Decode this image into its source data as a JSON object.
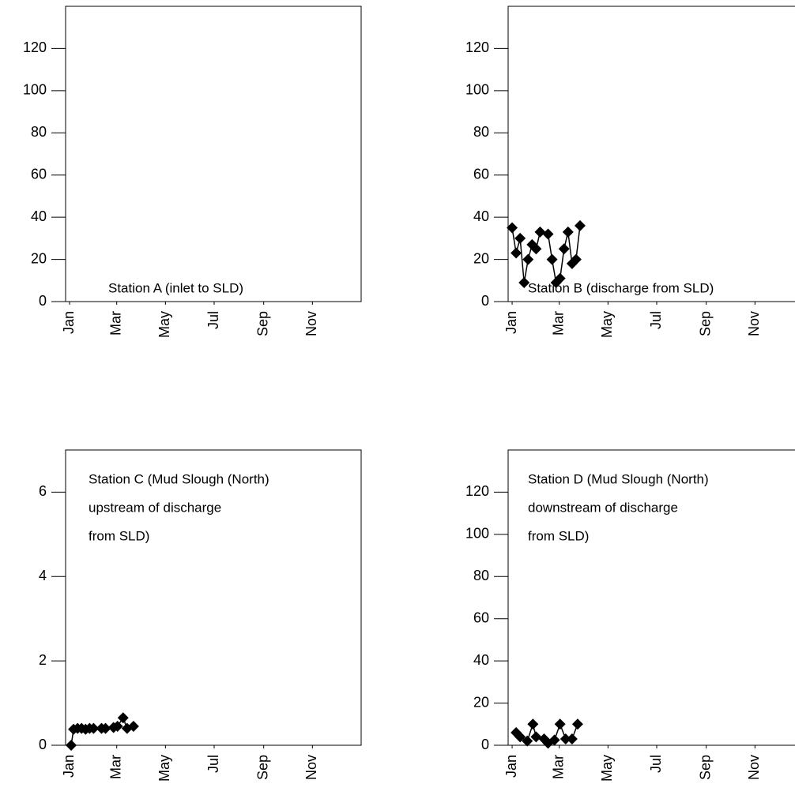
{
  "chart_data": [
    {
      "type": "line",
      "annotation": [
        "Station A (inlet to SLD)"
      ],
      "color": "#000000",
      "x": [],
      "values": [],
      "xlim": [
        -5,
        365
      ],
      "xticks": [
        {
          "value": 0,
          "label": "Jan"
        },
        {
          "value": 59,
          "label": "Mar"
        },
        {
          "value": 120,
          "label": "May"
        },
        {
          "value": 181,
          "label": "Jul"
        },
        {
          "value": 243,
          "label": "Sep"
        },
        {
          "value": 304,
          "label": "Nov"
        }
      ],
      "ylim": [
        0,
        140
      ],
      "yticks": [
        0,
        20,
        40,
        60,
        80,
        100,
        120
      ]
    },
    {
      "type": "line",
      "annotation": [
        "Station B (discharge from SLD)"
      ],
      "color": "#000000",
      "x": [
        0,
        5,
        10,
        15,
        20,
        25,
        30,
        35,
        45,
        50,
        55,
        60,
        65,
        70,
        75,
        80,
        85
      ],
      "values": [
        35,
        23,
        30,
        9,
        20,
        27,
        25,
        33,
        32,
        20,
        9,
        11,
        25,
        33,
        18,
        20,
        36
      ],
      "xlim": [
        -5,
        365
      ],
      "xticks": [
        {
          "value": 0,
          "label": "Jan"
        },
        {
          "value": 59,
          "label": "Mar"
        },
        {
          "value": 120,
          "label": "May"
        },
        {
          "value": 181,
          "label": "Jul"
        },
        {
          "value": 243,
          "label": "Sep"
        },
        {
          "value": 304,
          "label": "Nov"
        }
      ],
      "ylim": [
        0,
        140
      ],
      "yticks": [
        0,
        20,
        40,
        60,
        80,
        100,
        120
      ]
    },
    {
      "type": "line",
      "annotation": [
        "Station C (Mud Slough (North)",
        "upstream of discharge",
        "from SLD)"
      ],
      "color": "#000000",
      "x": [
        2,
        5,
        10,
        15,
        20,
        25,
        30,
        40,
        45,
        55,
        60,
        67,
        72,
        80
      ],
      "values": [
        0,
        0.38,
        0.4,
        0.4,
        0.38,
        0.4,
        0.4,
        0.4,
        0.4,
        0.42,
        0.45,
        0.65,
        0.4,
        0.45
      ],
      "xlim": [
        -5,
        365
      ],
      "xticks": [
        {
          "value": 0,
          "label": "Jan"
        },
        {
          "value": 59,
          "label": "Mar"
        },
        {
          "value": 120,
          "label": "May"
        },
        {
          "value": 181,
          "label": "Jul"
        },
        {
          "value": 243,
          "label": "Sep"
        },
        {
          "value": 304,
          "label": "Nov"
        }
      ],
      "ylim": [
        0,
        7
      ],
      "yticks": [
        0,
        2,
        4,
        6
      ]
    },
    {
      "type": "line",
      "annotation": [
        "Station D (Mud Slough (North)",
        "downstream of discharge",
        "from SLD)"
      ],
      "color": "#000000",
      "x": [
        5,
        10,
        19,
        26,
        30,
        40,
        45,
        53,
        60,
        67,
        75,
        82
      ],
      "values": [
        6,
        4,
        2,
        10,
        4,
        3,
        1,
        2.5,
        10,
        3,
        3,
        10
      ],
      "xlim": [
        -5,
        365
      ],
      "xticks": [
        {
          "value": 0,
          "label": "Jan"
        },
        {
          "value": 59,
          "label": "Mar"
        },
        {
          "value": 120,
          "label": "May"
        },
        {
          "value": 181,
          "label": "Jul"
        },
        {
          "value": 243,
          "label": "Sep"
        },
        {
          "value": 304,
          "label": "Nov"
        }
      ],
      "ylim": [
        0,
        140
      ],
      "yticks": [
        0,
        20,
        40,
        60,
        80,
        100,
        120
      ]
    }
  ]
}
